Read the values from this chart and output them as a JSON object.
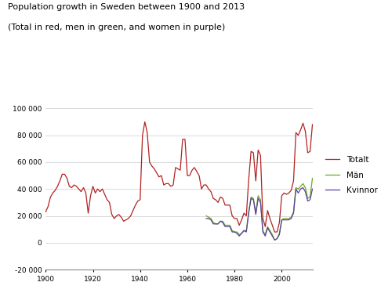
{
  "title_line1": "Population growth in Sweden between 1900 and 2013",
  "title_line2": "(Total in red, men in green, and women in purple)",
  "xlim": [
    1900,
    2013
  ],
  "ylim": [
    -20000,
    100000
  ],
  "yticks": [
    -20000,
    0,
    20000,
    40000,
    60000,
    80000,
    100000
  ],
  "ytick_labels": [
    "-20 000",
    "0",
    "20 000",
    "40 000",
    "60 000",
    "80 000",
    "100 000"
  ],
  "xticks": [
    1900,
    1920,
    1940,
    1960,
    1980,
    2000
  ],
  "color_totalt": "#B22222",
  "color_man": "#6AAB1A",
  "color_kvinnor": "#5B3FA0",
  "legend_labels": [
    "Totalt",
    "Män",
    "Kvinnor"
  ],
  "totalt_years": [
    1900,
    1901,
    1902,
    1903,
    1904,
    1905,
    1906,
    1907,
    1908,
    1909,
    1910,
    1911,
    1912,
    1913,
    1914,
    1915,
    1916,
    1917,
    1918,
    1919,
    1920,
    1921,
    1922,
    1923,
    1924,
    1925,
    1926,
    1927,
    1928,
    1929,
    1930,
    1931,
    1932,
    1933,
    1934,
    1935,
    1936,
    1937,
    1938,
    1939,
    1940,
    1941,
    1942,
    1943,
    1944,
    1945,
    1946,
    1947,
    1948,
    1949,
    1950,
    1951,
    1952,
    1953,
    1954,
    1955,
    1956,
    1957,
    1958,
    1959,
    1960,
    1961,
    1962,
    1963,
    1964,
    1965,
    1966,
    1967,
    1968,
    1969,
    1970,
    1971,
    1972,
    1973,
    1974,
    1975,
    1976,
    1977,
    1978,
    1979,
    1980,
    1981,
    1982,
    1983,
    1984,
    1985,
    1986,
    1987,
    1988,
    1989,
    1990,
    1991,
    1992,
    1993,
    1994,
    1995,
    1996,
    1997,
    1998,
    1999,
    2000,
    2001,
    2002,
    2003,
    2004,
    2005,
    2006,
    2007,
    2008,
    2009,
    2010,
    2011,
    2012,
    2013
  ],
  "totalt_values": [
    23000,
    27000,
    34000,
    37000,
    39000,
    42000,
    46000,
    51000,
    51000,
    48000,
    42000,
    41000,
    43000,
    42000,
    40000,
    38000,
    41000,
    37000,
    22000,
    35000,
    42000,
    37000,
    40000,
    38000,
    40000,
    36000,
    32000,
    30000,
    21000,
    18000,
    20000,
    21000,
    19000,
    16000,
    17000,
    18000,
    20000,
    24000,
    28000,
    31000,
    32000,
    80000,
    90000,
    82000,
    60000,
    57000,
    55000,
    52000,
    49000,
    50000,
    43000,
    44000,
    44000,
    42000,
    43000,
    56000,
    55000,
    54000,
    77000,
    77000,
    50000,
    50000,
    54000,
    56000,
    53000,
    50000,
    40000,
    43000,
    43000,
    40000,
    38000,
    33000,
    32000,
    30000,
    34000,
    33000,
    28000,
    28000,
    28000,
    20000,
    18000,
    18000,
    13000,
    17000,
    22000,
    20000,
    47000,
    68000,
    67000,
    46000,
    69000,
    65000,
    18000,
    12000,
    24000,
    18000,
    13000,
    8000,
    8000,
    15000,
    35000,
    37000,
    36000,
    37000,
    39000,
    46000,
    82000,
    80000,
    84000,
    89000,
    83000,
    67000,
    68000,
    88000
  ],
  "man_years": [
    1968,
    1969,
    1970,
    1971,
    1972,
    1973,
    1974,
    1975,
    1976,
    1977,
    1978,
    1979,
    1980,
    1981,
    1982,
    1983,
    1984,
    1985,
    1986,
    1987,
    1988,
    1989,
    1990,
    1991,
    1992,
    1993,
    1994,
    1995,
    1996,
    1997,
    1998,
    1999,
    2000,
    2001,
    2002,
    2003,
    2004,
    2005,
    2006,
    2007,
    2008,
    2009,
    2010,
    2011,
    2012,
    2013
  ],
  "man_values": [
    20000,
    19000,
    18000,
    15000,
    14000,
    14000,
    16000,
    16000,
    13000,
    13000,
    13000,
    9000,
    8000,
    8000,
    6000,
    7000,
    9000,
    9000,
    23000,
    34000,
    33000,
    22000,
    35000,
    32000,
    9000,
    6000,
    12000,
    9000,
    6000,
    2000,
    3000,
    7000,
    17000,
    18000,
    18000,
    18000,
    19000,
    23000,
    41000,
    40000,
    42000,
    44000,
    41000,
    33000,
    34000,
    48000
  ],
  "kvinnor_years": [
    1968,
    1969,
    1970,
    1971,
    1972,
    1973,
    1974,
    1975,
    1976,
    1977,
    1978,
    1979,
    1980,
    1981,
    1982,
    1983,
    1984,
    1985,
    1986,
    1987,
    1988,
    1989,
    1990,
    1991,
    1992,
    1993,
    1994,
    1995,
    1996,
    1997,
    1998,
    1999,
    2000,
    2001,
    2002,
    2003,
    2004,
    2005,
    2006,
    2007,
    2008,
    2009,
    2010,
    2011,
    2012,
    2013
  ],
  "kvinnor_values": [
    18000,
    18000,
    17000,
    14000,
    14000,
    14000,
    16000,
    15000,
    12000,
    12000,
    12000,
    8000,
    8000,
    7000,
    5000,
    7000,
    9000,
    8000,
    22000,
    33000,
    32000,
    21000,
    33000,
    30000,
    8000,
    5000,
    11000,
    8000,
    5000,
    2000,
    3000,
    6000,
    17000,
    17000,
    17000,
    17000,
    18000,
    22000,
    40000,
    37000,
    40000,
    41000,
    38000,
    31000,
    32000,
    40000
  ]
}
